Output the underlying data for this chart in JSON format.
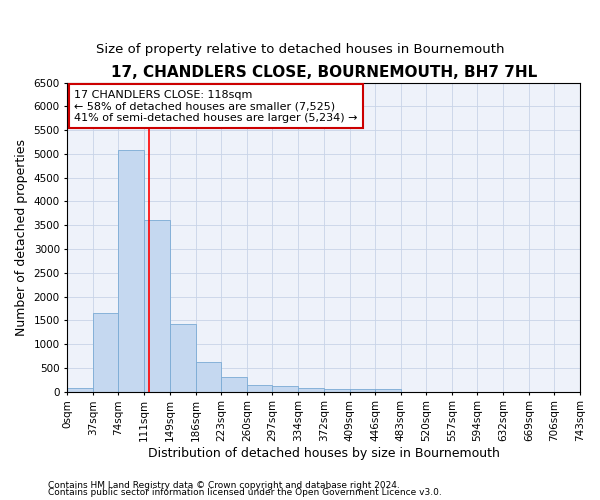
{
  "title": "17, CHANDLERS CLOSE, BOURNEMOUTH, BH7 7HL",
  "subtitle": "Size of property relative to detached houses in Bournemouth",
  "xlabel": "Distribution of detached houses by size in Bournemouth",
  "ylabel": "Number of detached properties",
  "bar_values": [
    75,
    1650,
    5075,
    3600,
    1425,
    625,
    300,
    150,
    125,
    75,
    60,
    50,
    50,
    0,
    0,
    0,
    0,
    0,
    0,
    0
  ],
  "bar_color": "#c5d8f0",
  "bar_edge_color": "#7aaad4",
  "bin_edges": [
    0,
    37,
    74,
    111,
    149,
    186,
    223,
    260,
    297,
    334,
    372,
    409,
    446,
    483,
    520,
    557,
    594,
    632,
    669,
    706,
    743
  ],
  "tick_labels": [
    "0sqm",
    "37sqm",
    "74sqm",
    "111sqm",
    "149sqm",
    "186sqm",
    "223sqm",
    "260sqm",
    "297sqm",
    "334sqm",
    "372sqm",
    "409sqm",
    "446sqm",
    "483sqm",
    "520sqm",
    "557sqm",
    "594sqm",
    "632sqm",
    "669sqm",
    "706sqm",
    "743sqm"
  ],
  "ylim": [
    0,
    6500
  ],
  "yticks": [
    0,
    500,
    1000,
    1500,
    2000,
    2500,
    3000,
    3500,
    4000,
    4500,
    5000,
    5500,
    6000,
    6500
  ],
  "red_line_x": 118,
  "annotation_text": "17 CHANDLERS CLOSE: 118sqm\n← 58% of detached houses are smaller (7,525)\n41% of semi-detached houses are larger (5,234) →",
  "annotation_box_color": "#ffffff",
  "annotation_border_color": "#cc0000",
  "footnote1": "Contains HM Land Registry data © Crown copyright and database right 2024.",
  "footnote2": "Contains public sector information licensed under the Open Government Licence v3.0.",
  "title_fontsize": 11,
  "subtitle_fontsize": 9.5,
  "axis_label_fontsize": 9,
  "tick_fontsize": 7.5,
  "annot_fontsize": 8,
  "footnote_fontsize": 6.5,
  "grid_color": "#c8d4e8",
  "bg_color": "#eef2fa"
}
